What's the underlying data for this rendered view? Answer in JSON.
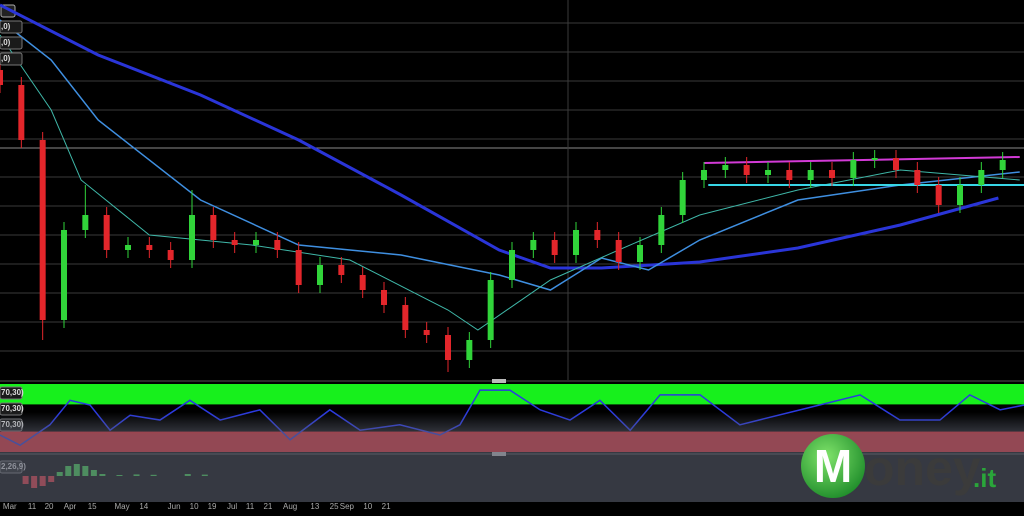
{
  "chart_data": [
    {
      "type": "candlestick",
      "up_color": "#31d43a",
      "down_color": "#e3262b",
      "xlim": [
        0,
        240
      ],
      "ylim": [
        20,
        400
      ],
      "panel_labels": [
        ",0)",
        ",0)",
        ",0)"
      ],
      "x": [
        0,
        5,
        10,
        15,
        20,
        25,
        30,
        35,
        40,
        45,
        50,
        55,
        60,
        65,
        70,
        75,
        80,
        85,
        90,
        95,
        100,
        105,
        110,
        115,
        120,
        125,
        130,
        135,
        140,
        145,
        150,
        155,
        160,
        165,
        170,
        175,
        180,
        185,
        190,
        195,
        200,
        205,
        210,
        215,
        220,
        225,
        230,
        235
      ],
      "open": [
        330,
        315,
        260,
        80,
        170,
        185,
        150,
        155,
        150,
        140,
        185,
        160,
        155,
        160,
        150,
        115,
        135,
        125,
        110,
        95,
        70,
        65,
        40,
        60,
        120,
        150,
        160,
        145,
        170,
        160,
        138,
        155,
        185,
        220,
        230,
        235,
        225,
        230,
        220,
        230,
        222,
        240,
        242,
        230,
        215,
        195,
        215,
        230
      ],
      "high": [
        338,
        323,
        268,
        178,
        215,
        193,
        163,
        163,
        158,
        210,
        193,
        168,
        168,
        168,
        158,
        143,
        143,
        133,
        118,
        103,
        78,
        73,
        68,
        128,
        158,
        168,
        168,
        178,
        178,
        168,
        163,
        193,
        228,
        238,
        243,
        243,
        238,
        238,
        238,
        238,
        248,
        250,
        250,
        238,
        223,
        223,
        238,
        248
      ],
      "low": [
        307,
        252,
        60,
        72,
        162,
        142,
        142,
        142,
        132,
        132,
        152,
        147,
        147,
        142,
        107,
        107,
        117,
        102,
        87,
        62,
        57,
        28,
        32,
        52,
        112,
        142,
        137,
        137,
        152,
        130,
        130,
        147,
        177,
        212,
        222,
        217,
        217,
        212,
        212,
        214,
        214,
        232,
        222,
        207,
        187,
        187,
        207,
        222
      ],
      "close": [
        315,
        260,
        80,
        170,
        185,
        150,
        155,
        150,
        140,
        185,
        160,
        155,
        160,
        150,
        115,
        135,
        125,
        110,
        95,
        70,
        65,
        40,
        60,
        120,
        150,
        160,
        145,
        170,
        160,
        138,
        155,
        185,
        220,
        230,
        235,
        225,
        230,
        220,
        230,
        222,
        240,
        242,
        230,
        215,
        195,
        215,
        230,
        240
      ],
      "overlays": [
        {
          "color": "#2a35d8",
          "line_width": 3,
          "x": [
            0,
            23,
            47,
            70,
            94,
            117,
            129,
            141,
            164,
            187,
            211,
            234
          ],
          "values": [
            395,
            345,
            305,
            260,
            205,
            150,
            132,
            132,
            138,
            152,
            175,
            202
          ]
        },
        {
          "color": "#3f8fe0",
          "line_width": 1.5,
          "x": [
            0,
            12,
            23,
            47,
            70,
            94,
            117,
            129,
            141,
            152,
            164,
            187,
            211,
            239
          ],
          "values": [
            380,
            340,
            280,
            200,
            155,
            145,
            125,
            110,
            142,
            130,
            160,
            200,
            215,
            228
          ]
        },
        {
          "color": "#3fb7a8",
          "line_width": 1,
          "x": [
            0,
            12,
            19,
            35,
            59,
            82,
            105,
            112,
            129,
            145,
            164,
            187,
            211,
            239
          ],
          "values": [
            365,
            290,
            220,
            165,
            155,
            140,
            90,
            70,
            120,
            150,
            185,
            210,
            230,
            220
          ]
        },
        {
          "color": "#d23ad6",
          "line_width": 2,
          "x": [
            165,
            239
          ],
          "values": [
            237,
            243
          ]
        },
        {
          "color": "#38d6e6",
          "line_width": 2,
          "x": [
            166,
            240
          ],
          "values": [
            215,
            215
          ]
        }
      ],
      "xticks": [
        {
          "value": 2.3,
          "label": "Mar"
        },
        {
          "value": 7.5,
          "label": "11"
        },
        {
          "value": 11.5,
          "label": "20"
        },
        {
          "value": 16.4,
          "label": "Apr"
        },
        {
          "value": 21.6,
          "label": "15"
        },
        {
          "value": 28.6,
          "label": "May"
        },
        {
          "value": 33.7,
          "label": "14"
        },
        {
          "value": 40.8,
          "label": "Jun"
        },
        {
          "value": 45.5,
          "label": "10"
        },
        {
          "value": 49.7,
          "label": "19"
        },
        {
          "value": 54.4,
          "label": "Jul"
        },
        {
          "value": 58.6,
          "label": "11"
        },
        {
          "value": 62.8,
          "label": "21"
        },
        {
          "value": 68,
          "label": "Aug"
        },
        {
          "value": 73.8,
          "label": "13"
        },
        {
          "value": 78.3,
          "label": "25"
        },
        {
          "value": 81.3,
          "label": "Sep"
        },
        {
          "value": 86.2,
          "label": "10"
        },
        {
          "value": 90.5,
          "label": "21"
        }
      ]
    },
    {
      "type": "line",
      "color": "#2b3ae0",
      "xlim": [
        0,
        240
      ],
      "ylim": [
        0,
        100
      ],
      "overbought": 70,
      "oversold": 30,
      "band_colors": [
        "#17f01c",
        "#e8262c"
      ],
      "panel_labels": [
        "70,30)",
        "70,30)",
        "70,30)"
      ],
      "x": [
        0,
        4.7,
        11.7,
        16.4,
        21.1,
        25.8,
        30.5,
        37.5,
        44.5,
        51.6,
        60.9,
        68,
        77.3,
        84.4,
        93.7,
        103.1,
        107.8,
        112.5,
        119.5,
        126.6,
        133.6,
        140.6,
        147.7,
        154.7,
        164.1,
        173.4,
        187.5,
        201.6,
        210.9,
        220.3,
        227.3,
        234.4,
        240
      ],
      "values": [
        25,
        10,
        40,
        76,
        69,
        32,
        54,
        47,
        76,
        47,
        62,
        18,
        62,
        32,
        40,
        25,
        40,
        91,
        91,
        62,
        47,
        76,
        32,
        84,
        84,
        40,
        62,
        84,
        47,
        47,
        84,
        62,
        69
      ]
    },
    {
      "type": "bar",
      "pos_color": "#3bd24a",
      "neg_color": "#e0303a",
      "xlim": [
        0,
        240
      ],
      "ylim": [
        -1,
        1
      ],
      "panel_labels": [
        "2,26,9)"
      ],
      "x": [
        6,
        8,
        10,
        12,
        14,
        16,
        18,
        20,
        22,
        24,
        28,
        32,
        36,
        44,
        48
      ],
      "values": [
        -0.4,
        -0.6,
        -0.5,
        -0.3,
        0.2,
        0.5,
        0.6,
        0.5,
        0.3,
        0.1,
        0.05,
        0.08,
        0.06,
        0.1,
        0.07
      ]
    }
  ],
  "watermark": {
    "letter": "M",
    "word": "oney",
    "suffix": ".it"
  }
}
